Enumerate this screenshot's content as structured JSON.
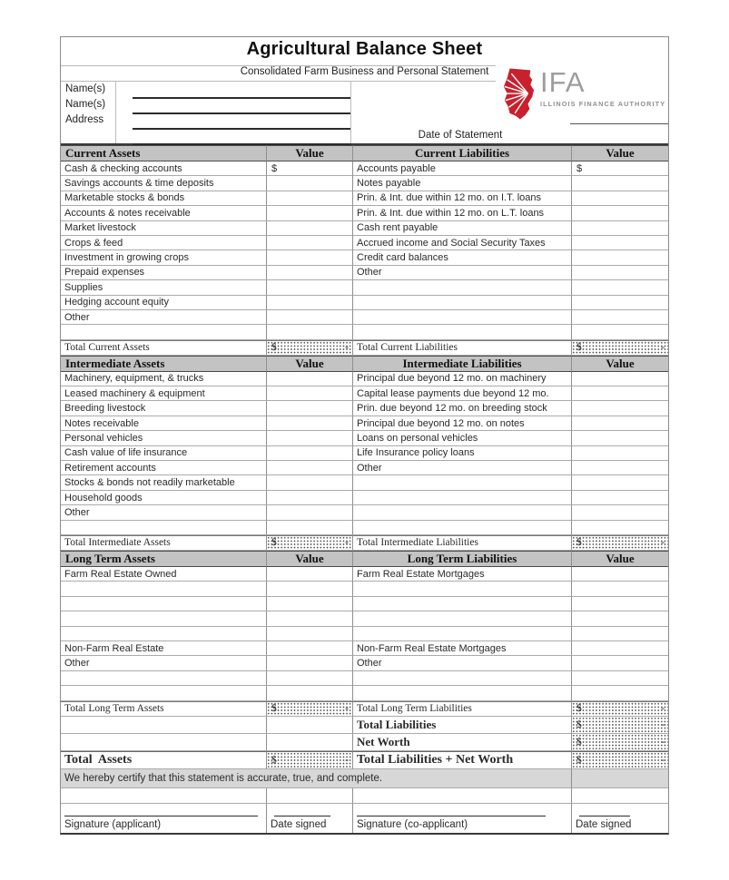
{
  "header": {
    "title": "Agricultural Balance Sheet",
    "subtitle": "Consolidated Farm Business and Personal Statement",
    "name_label_1": "Name(s)",
    "name_label_2": "Name(s)",
    "address_label": "Address",
    "date_label": "Date of Statement",
    "logo": {
      "abbr": "IFA",
      "name": "ILLINOIS FINANCE AUTHORITY",
      "icon": "illinois-state-starburst",
      "red": "#c9202e",
      "gray": "#9d9d9d"
    }
  },
  "currency": {
    "symbol": "$",
    "zero_dash": "-"
  },
  "table": {
    "value_header": "Value",
    "sections": [
      {
        "asset_header": "Current Assets",
        "liability_header": "Current Liabilities",
        "rows": [
          [
            "Cash & checking accounts",
            "$",
            "Accounts payable",
            "$"
          ],
          [
            "Savings accounts & time deposits",
            "",
            "Notes payable",
            ""
          ],
          [
            "Marketable stocks & bonds",
            "",
            "Prin. & Int. due within 12 mo. on I.T. loans",
            ""
          ],
          [
            "Accounts & notes receivable",
            "",
            "Prin. & Int. due within 12 mo. on L.T. loans",
            ""
          ],
          [
            "Market livestock",
            "",
            "Cash rent payable",
            ""
          ],
          [
            "Crops & feed",
            "",
            "Accrued income and Social Security Taxes",
            ""
          ],
          [
            "Investment in growing crops",
            "",
            "Credit card balances",
            ""
          ],
          [
            "Prepaid expenses",
            "",
            "Other",
            ""
          ],
          [
            "Supplies",
            "",
            "",
            ""
          ],
          [
            "Hedging account equity",
            "",
            "",
            ""
          ],
          [
            "Other",
            "",
            "",
            ""
          ],
          [
            "",
            "",
            "",
            ""
          ]
        ],
        "total_asset_label": "Total Current Assets",
        "total_liability_label": "Total Current Liabilities"
      },
      {
        "asset_header": "Intermediate Assets",
        "liability_header": "Intermediate Liabilities",
        "rows": [
          [
            "Machinery, equipment, & trucks",
            "",
            "Principal due beyond 12 mo. on machinery",
            ""
          ],
          [
            "Leased machinery & equipment",
            "",
            "Capital lease payments due beyond 12 mo.",
            ""
          ],
          [
            "Breeding livestock",
            "",
            "Prin. due beyond 12 mo. on breeding stock",
            ""
          ],
          [
            "Notes receivable",
            "",
            "Principal due beyond 12 mo. on notes",
            ""
          ],
          [
            "Personal vehicles",
            "",
            "Loans on personal vehicles",
            ""
          ],
          [
            "Cash value of life insurance",
            "",
            "Life Insurance policy loans",
            ""
          ],
          [
            "Retirement accounts",
            "",
            "Other",
            ""
          ],
          [
            "Stocks & bonds not readily marketable",
            "",
            "",
            ""
          ],
          [
            "Household goods",
            "",
            "",
            ""
          ],
          [
            "Other",
            "",
            "",
            ""
          ],
          [
            "",
            "",
            "",
            ""
          ]
        ],
        "total_asset_label": "Total Intermediate Assets",
        "total_liability_label": "Total Intermediate Liabilities"
      },
      {
        "asset_header": "Long Term Assets",
        "liability_header": "Long Term Liabilities",
        "rows": [
          [
            "Farm Real Estate Owned",
            "",
            "Farm Real Estate Mortgages",
            ""
          ],
          [
            "",
            "",
            "",
            ""
          ],
          [
            "",
            "",
            "",
            ""
          ],
          [
            "",
            "",
            "",
            ""
          ],
          [
            "",
            "",
            "",
            ""
          ],
          [
            "Non-Farm Real Estate",
            "",
            "Non-Farm Real Estate Mortgages",
            ""
          ],
          [
            "Other",
            "",
            "Other",
            ""
          ],
          [
            "",
            "",
            "",
            ""
          ],
          [
            "",
            "",
            "",
            ""
          ]
        ],
        "total_asset_label": "Total Long Term Assets",
        "total_liability_label": "Total Long Term Liabilities"
      }
    ],
    "extra_total_rows": [
      {
        "label": "Total Liabilities"
      },
      {
        "label": "Net Worth"
      }
    ],
    "grand_total": {
      "asset_label": "Total  Assets",
      "liability_label": "Total Liabilities + Net Worth"
    },
    "certify_text": "We hereby certify that this statement is accurate, true, and complete.",
    "signature_labels": [
      "Signature (applicant)",
      "Date signed",
      "Signature (co-applicant)",
      "Date signed"
    ]
  }
}
